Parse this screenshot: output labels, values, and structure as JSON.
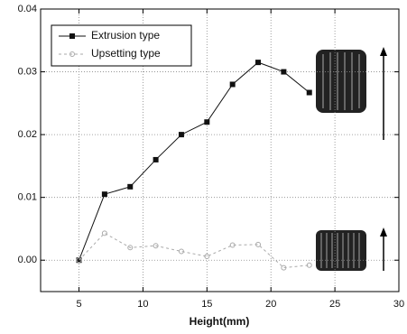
{
  "chart_data": {
    "type": "line",
    "xlabel": "Height(mm)",
    "x": [
      5,
      7,
      9,
      11,
      13,
      15,
      17,
      19,
      21,
      23
    ],
    "series": [
      {
        "name": "Extrusion type",
        "color": "#111111",
        "values": [
          0,
          0.0105,
          0.0117,
          0.016,
          0.02,
          0.022,
          0.028,
          0.0315,
          0.03,
          0.0267
        ]
      },
      {
        "name": "Upsetting type",
        "color": "#aaaaaa",
        "values": [
          0,
          0.0043,
          0.002,
          0.0023,
          0.0014,
          0.0006,
          0.0024,
          0.0025,
          -0.0012,
          -0.0008
        ]
      }
    ],
    "xlim": [
      2,
      30
    ],
    "xticks": [
      5,
      10,
      15,
      20,
      25,
      30
    ],
    "ylim": [
      -0.005,
      0.04
    ],
    "yticks": [
      {
        "value": 0,
        "label": "0.00"
      },
      0.01,
      0.02,
      0.03,
      {
        "value": 0.04,
        "label": "0.04"
      }
    ],
    "grid": true,
    "legend": "upper left"
  }
}
